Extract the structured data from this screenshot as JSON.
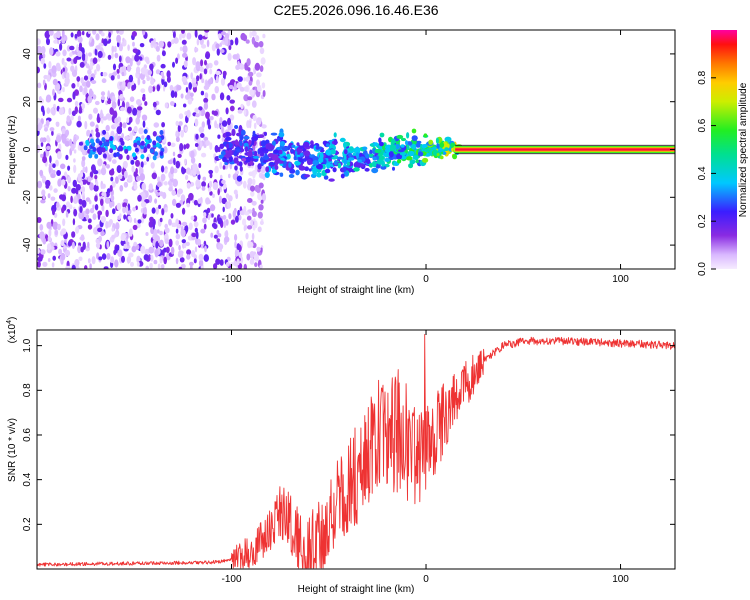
{
  "title": "C2E5.2026.096.16.46.E36",
  "chart_data": [
    {
      "type": "heatmap",
      "xlabel": "Height of straight line (km)",
      "ylabel": "Frequency (Hz)",
      "xlim": [
        -200,
        128
      ],
      "ylim": [
        -50,
        50
      ],
      "xticks": [
        -100,
        0,
        100
      ],
      "xtick_labels": [
        "-100",
        "0",
        "100"
      ],
      "yticks": [
        -40,
        -20,
        0,
        20,
        40
      ],
      "ytick_labels": [
        "-40",
        "-20",
        "0",
        "20",
        "40"
      ],
      "colorbar": {
        "label": "Normalized spectral amplitude",
        "range": [
          0,
          1
        ],
        "ticks": [
          0.0,
          0.2,
          0.4,
          0.6,
          0.8
        ],
        "tick_labels": [
          "0.0",
          "0.2",
          "0.4",
          "0.6",
          "0.8"
        ],
        "colormap": "rainbow (violet to red)"
      },
      "features": {
        "noise_region_x": [
          -200,
          -95
        ],
        "noise_amplitude": 0.15,
        "signal_track": [
          {
            "x": -170,
            "f": 1.0,
            "amp": 0.3
          },
          {
            "x": -100,
            "f": 0.0,
            "amp": 0.35
          },
          {
            "x": -80,
            "f": -2.0,
            "amp": 0.4
          },
          {
            "x": -60,
            "f": -3.0,
            "amp": 0.45
          },
          {
            "x": -40,
            "f": -4.0,
            "amp": 0.5
          },
          {
            "x": -20,
            "f": -1.0,
            "amp": 0.6
          },
          {
            "x": 0,
            "f": 0.5,
            "amp": 0.75
          },
          {
            "x": 15,
            "f": 0.5,
            "amp": 0.9
          },
          {
            "x": 128,
            "f": 0.0,
            "amp": 1.0
          }
        ]
      }
    },
    {
      "type": "line",
      "xlabel": "Height of straight line (km)",
      "ylabel": "SNR (10 * v/v)",
      "y_multiplier": "(x10",
      "y_multiplier_exp": "4",
      "y_multiplier_close": ")",
      "xlim": [
        -200,
        128
      ],
      "ylim": [
        0,
        1.07
      ],
      "xticks": [
        -100,
        0,
        100
      ],
      "xtick_labels": [
        "-100",
        "0",
        "100"
      ],
      "yticks": [
        0.2,
        0.4,
        0.6,
        0.8,
        1.0
      ],
      "ytick_labels": [
        "0.2",
        "0.4",
        "0.6",
        "0.8",
        "1.0"
      ],
      "color": "#ee3333",
      "series": [
        {
          "name": "SNR",
          "x": [
            -200,
            -150,
            -110,
            -100,
            -90,
            -80,
            -75,
            -70,
            -65,
            -60,
            -55,
            -50,
            -45,
            -40,
            -35,
            -30,
            -25,
            -20,
            -15,
            -10,
            -5,
            0,
            5,
            10,
            15,
            20,
            25,
            30,
            35,
            40,
            50,
            70,
            100,
            128
          ],
          "y": [
            0.02,
            0.025,
            0.03,
            0.04,
            0.08,
            0.18,
            0.26,
            0.22,
            0.12,
            0.08,
            0.14,
            0.22,
            0.3,
            0.38,
            0.42,
            0.5,
            0.6,
            0.55,
            0.62,
            0.58,
            0.5,
            0.55,
            0.62,
            0.68,
            0.75,
            0.82,
            0.88,
            0.93,
            0.97,
            1.0,
            1.02,
            1.02,
            1.01,
            1.0
          ]
        }
      ]
    }
  ]
}
